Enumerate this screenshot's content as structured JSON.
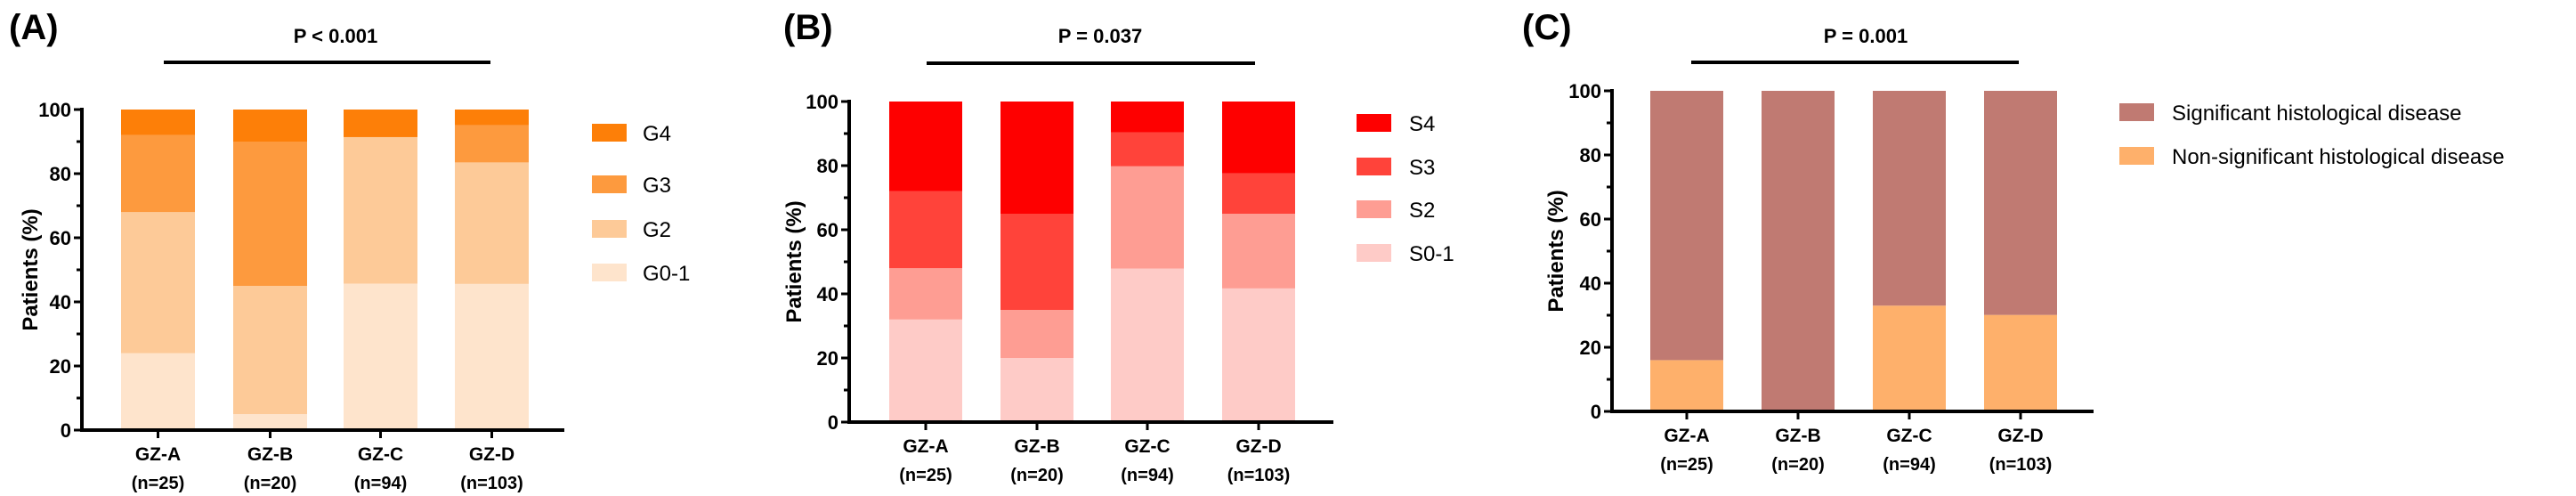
{
  "chart_data": [
    {
      "type": "bar",
      "stacked": true,
      "panel_label": "(A)",
      "p_value": "P < 0.001",
      "categories": [
        "GZ-A",
        "GZ-B",
        "GZ-C",
        "GZ-D"
      ],
      "category_n": [
        "(n=25)",
        "(n=20)",
        "(n=94)",
        "(n=103)"
      ],
      "ylabel": "Patients (%)",
      "ylim": [
        0,
        100
      ],
      "yticks": [
        "0",
        "20",
        "40",
        "60",
        "80",
        "100"
      ],
      "legend_position": "right",
      "series": [
        {
          "name": "G0-1",
          "color": "#fee4cc",
          "values": [
            24,
            5,
            45.7,
            45.6
          ]
        },
        {
          "name": "G2",
          "color": "#fdca98",
          "values": [
            44,
            40,
            45.7,
            37.9
          ]
        },
        {
          "name": "G3",
          "color": "#fd9a3e",
          "values": [
            24,
            45,
            0,
            11.6
          ]
        },
        {
          "name": "G4",
          "color": "#fd7f08",
          "values": [
            8,
            10,
            8.6,
            4.9
          ]
        }
      ]
    },
    {
      "type": "bar",
      "stacked": true,
      "panel_label": "(B)",
      "p_value": "P = 0.037",
      "categories": [
        "GZ-A",
        "GZ-B",
        "GZ-C",
        "GZ-D"
      ],
      "category_n": [
        "(n=25)",
        "(n=20)",
        "(n=94)",
        "(n=103)"
      ],
      "ylabel": "Patients (%)",
      "ylim": [
        0,
        100
      ],
      "yticks": [
        "0",
        "20",
        "40",
        "60",
        "80",
        "100"
      ],
      "legend_position": "right",
      "series": [
        {
          "name": "S0-1",
          "color": "#fecbc7",
          "values": [
            32,
            20,
            47.9,
            41.7
          ]
        },
        {
          "name": "S2",
          "color": "#fe9d93",
          "values": [
            16,
            15,
            31.9,
            23.3
          ]
        },
        {
          "name": "S3",
          "color": "#ff433a",
          "values": [
            24,
            30,
            10.6,
            12.6
          ]
        },
        {
          "name": "S4",
          "color": "#fe0000",
          "values": [
            28,
            35,
            9.6,
            22.4
          ]
        }
      ]
    },
    {
      "type": "bar",
      "stacked": true,
      "panel_label": "(C)",
      "p_value": "P = 0.001",
      "categories": [
        "GZ-A",
        "GZ-B",
        "GZ-C",
        "GZ-D"
      ],
      "category_n": [
        "(n=25)",
        "(n=20)",
        "(n=94)",
        "(n=103)"
      ],
      "ylabel": "Patients (%)",
      "ylim": [
        0,
        100
      ],
      "yticks": [
        "0",
        "20",
        "40",
        "60",
        "80",
        "100"
      ],
      "legend_position": "right",
      "series": [
        {
          "name": "Non-significant histological disease",
          "color": "#feb06b",
          "values": [
            16,
            0,
            33.0,
            30.1
          ]
        },
        {
          "name": "Significant histological disease",
          "color": "#c07a72",
          "values": [
            84,
            100,
            67.0,
            69.9
          ]
        }
      ]
    }
  ]
}
